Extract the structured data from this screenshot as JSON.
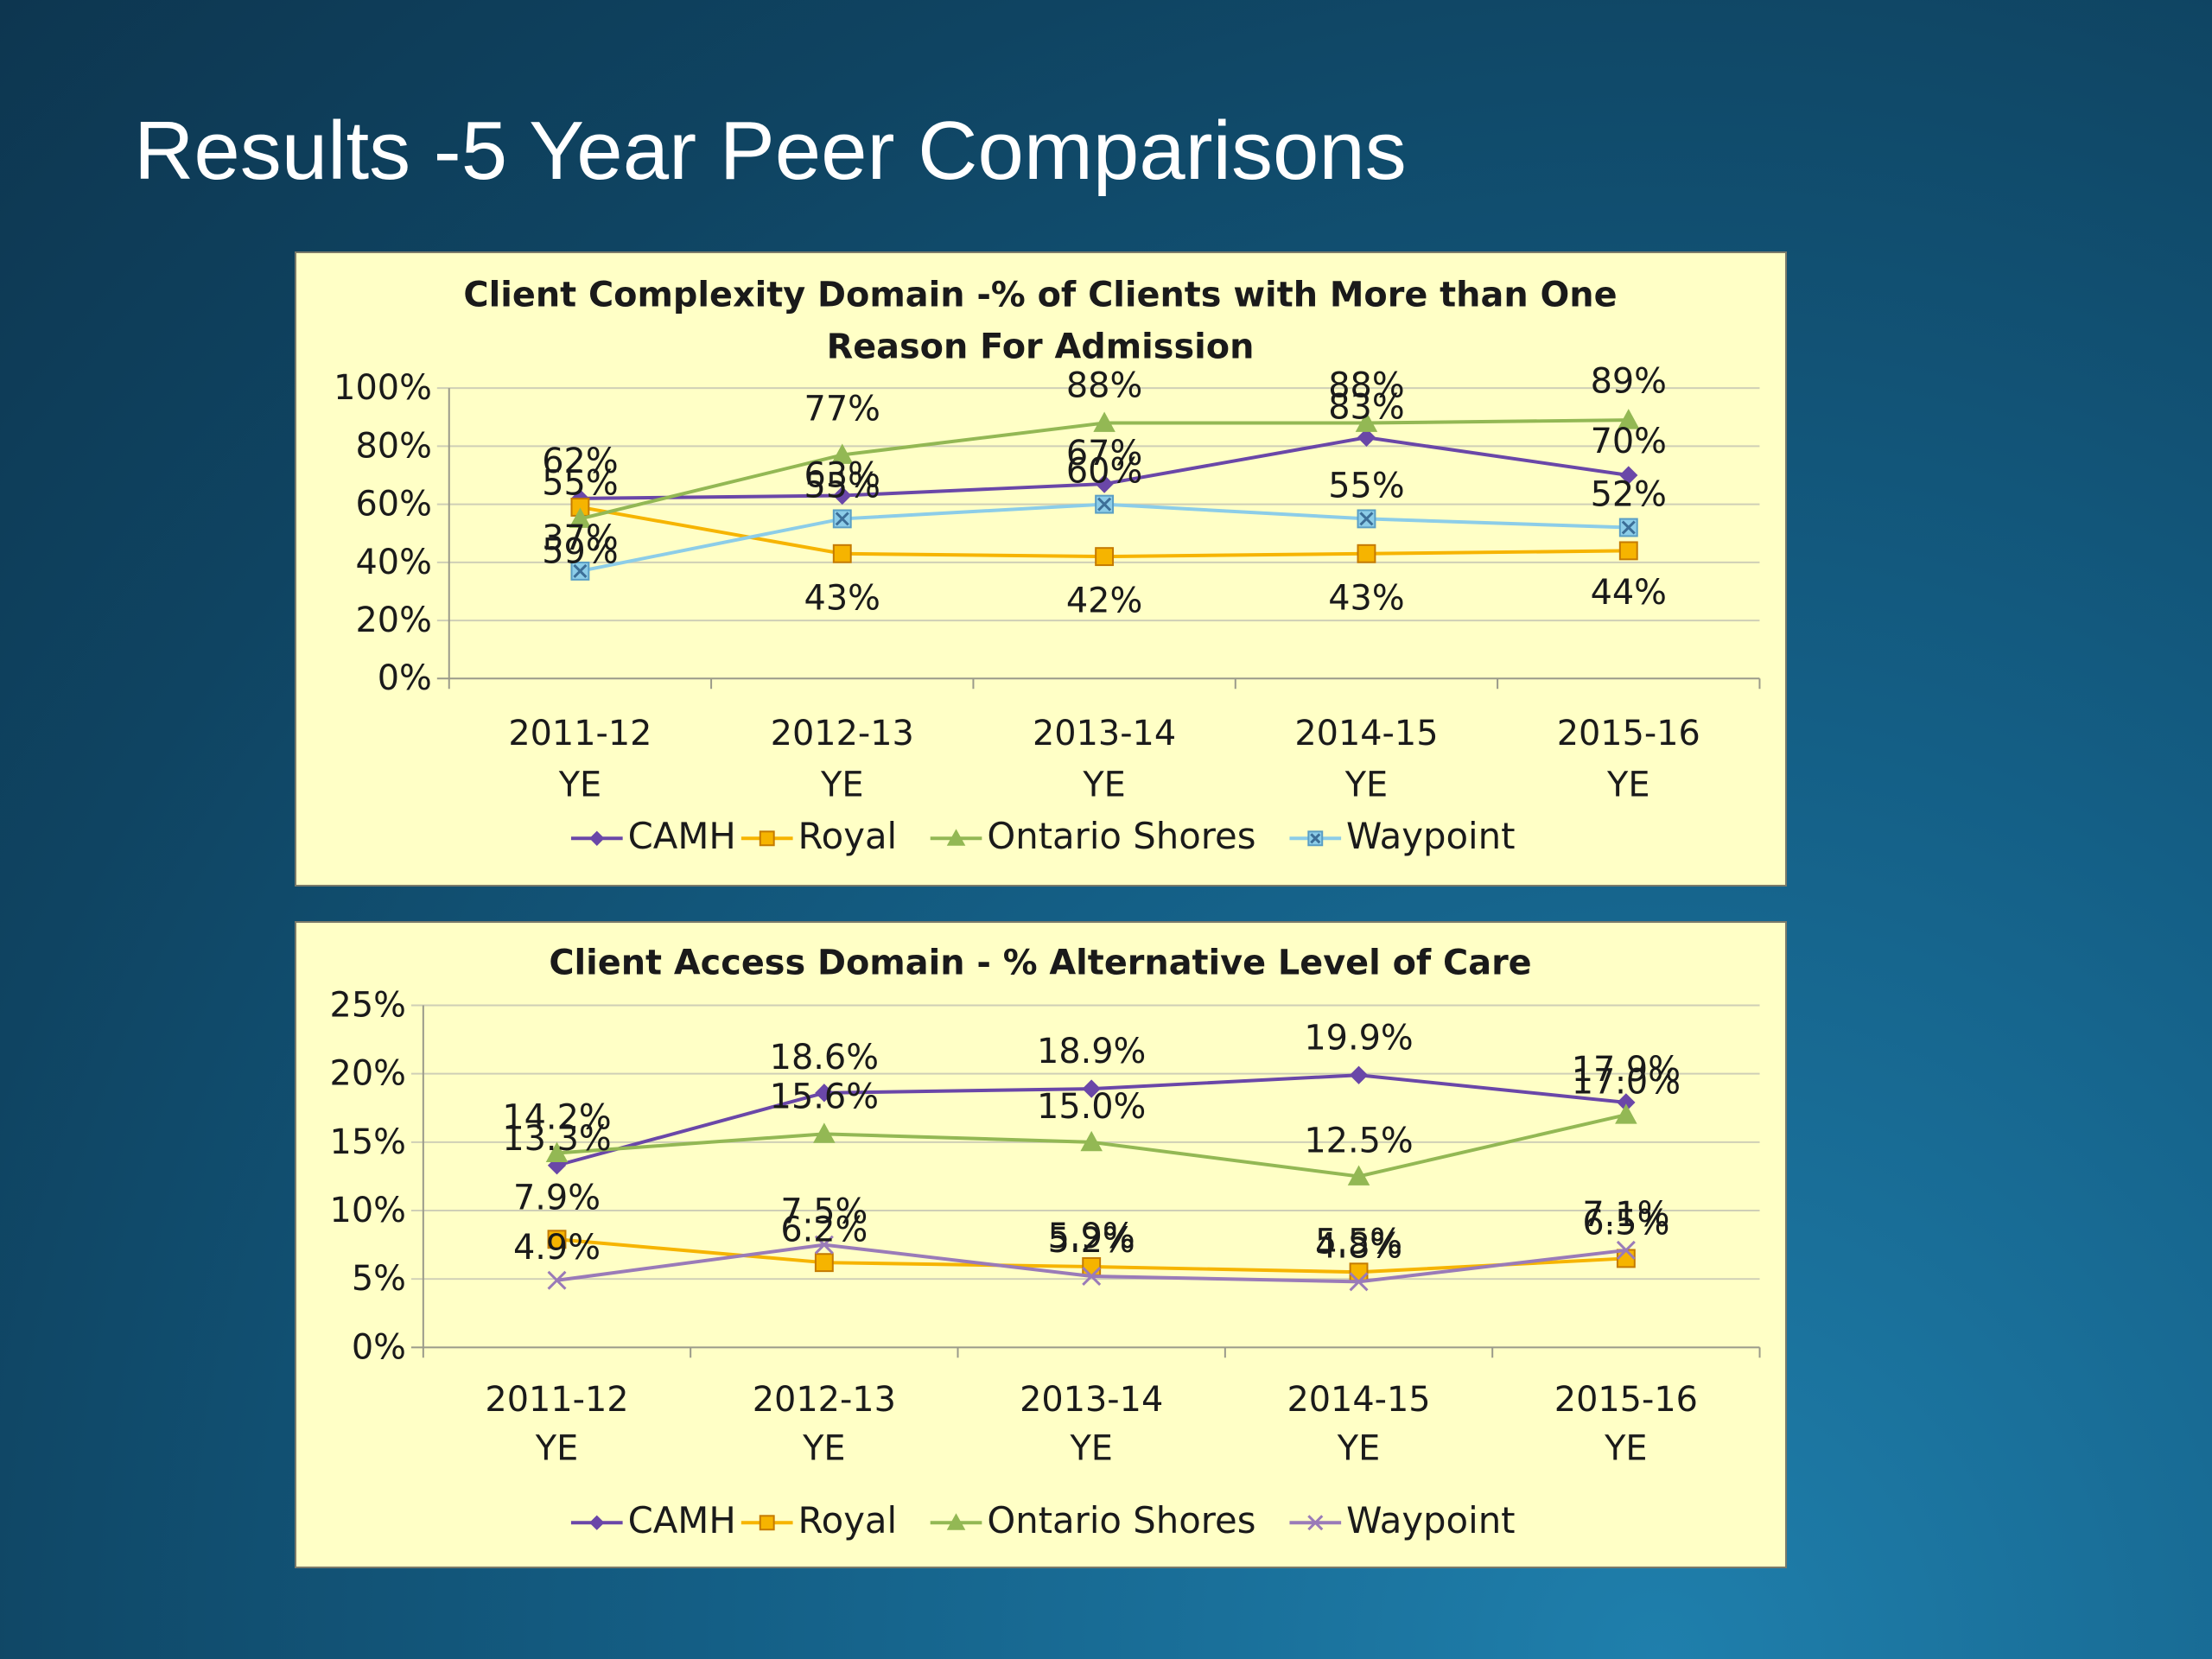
{
  "slide": {
    "title": "Results -5 Year Peer Comparisons"
  },
  "chart_data": [
    {
      "type": "line",
      "title": "Client Complexity Domain -% of Clients with More than One Reason For Admission",
      "title_lines": [
        "Client Complexity Domain -% of Clients with More than One",
        "Reason For Admission"
      ],
      "categories": [
        [
          "2011-12",
          "YE"
        ],
        [
          "2012-13",
          "YE"
        ],
        [
          "2013-14",
          "YE"
        ],
        [
          "2014-15",
          "YE"
        ],
        [
          "2015-16",
          "YE"
        ]
      ],
      "yticks": [
        "0%",
        "20%",
        "40%",
        "60%",
        "80%",
        "100%"
      ],
      "ylim": [
        0,
        100
      ],
      "grid": true,
      "legend": "bottom",
      "series": [
        {
          "name": "CAMH",
          "color": "#6a47a8",
          "marker": "diamond",
          "values": [
            62,
            63,
            67,
            83,
            70
          ],
          "labels": [
            "62%",
            "63%",
            "67%",
            "83%",
            "70%"
          ]
        },
        {
          "name": "Royal",
          "color": "#f6b400",
          "marker": "square",
          "values": [
            59,
            43,
            42,
            43,
            44
          ],
          "labels": [
            "59%",
            "43%",
            "42%",
            "43%",
            "44%"
          ]
        },
        {
          "name": "Ontario Shores",
          "color": "#93b854",
          "marker": "triangle",
          "values": [
            55,
            77,
            88,
            88,
            89
          ],
          "labels": [
            "55%",
            "77%",
            "88%",
            "88%",
            "89%"
          ]
        },
        {
          "name": "Waypoint",
          "color": "#8ccde8",
          "marker": "xsquare",
          "values": [
            37,
            55,
            60,
            55,
            52
          ],
          "labels": [
            "37%",
            "55%",
            "60%",
            "55%",
            "52%"
          ]
        }
      ]
    },
    {
      "type": "line",
      "title": "Client Access Domain - % Alternative Level of Care",
      "title_lines": [
        "Client Access Domain - % Alternative Level of Care"
      ],
      "categories": [
        [
          "2011-12",
          "YE"
        ],
        [
          "2012-13",
          "YE"
        ],
        [
          "2013-14",
          "YE"
        ],
        [
          "2014-15",
          "YE"
        ],
        [
          "2015-16",
          "YE"
        ]
      ],
      "yticks": [
        "0%",
        "5%",
        "10%",
        "15%",
        "20%",
        "25%"
      ],
      "ylim": [
        0,
        25
      ],
      "grid": true,
      "legend": "bottom",
      "series": [
        {
          "name": "CAMH",
          "color": "#6a47a8",
          "marker": "diamond",
          "values": [
            13.3,
            18.6,
            18.9,
            19.9,
            17.9
          ],
          "labels": [
            "13.3%",
            "18.6%",
            "18.9%",
            "19.9%",
            "17.9%"
          ]
        },
        {
          "name": "Royal",
          "color": "#f6b400",
          "marker": "square",
          "values": [
            7.9,
            6.2,
            5.9,
            5.5,
            6.5
          ],
          "labels": [
            "7.9%",
            "6.2%",
            "5.9%",
            "5.5%",
            "6.5%"
          ]
        },
        {
          "name": "Ontario Shores",
          "color": "#93b854",
          "marker": "triangle",
          "values": [
            14.2,
            15.6,
            15.0,
            12.5,
            17.0
          ],
          "labels": [
            "14.2%",
            "15.6%",
            "15.0%",
            "12.5%",
            "17.0%"
          ]
        },
        {
          "name": "Waypoint",
          "color": "#9a7bb8",
          "marker": "x",
          "values": [
            4.9,
            7.5,
            5.2,
            4.8,
            7.1
          ],
          "labels": [
            "4.9%",
            "7.5%",
            "5.2%",
            "4.8%",
            "7.1%"
          ]
        }
      ]
    }
  ]
}
